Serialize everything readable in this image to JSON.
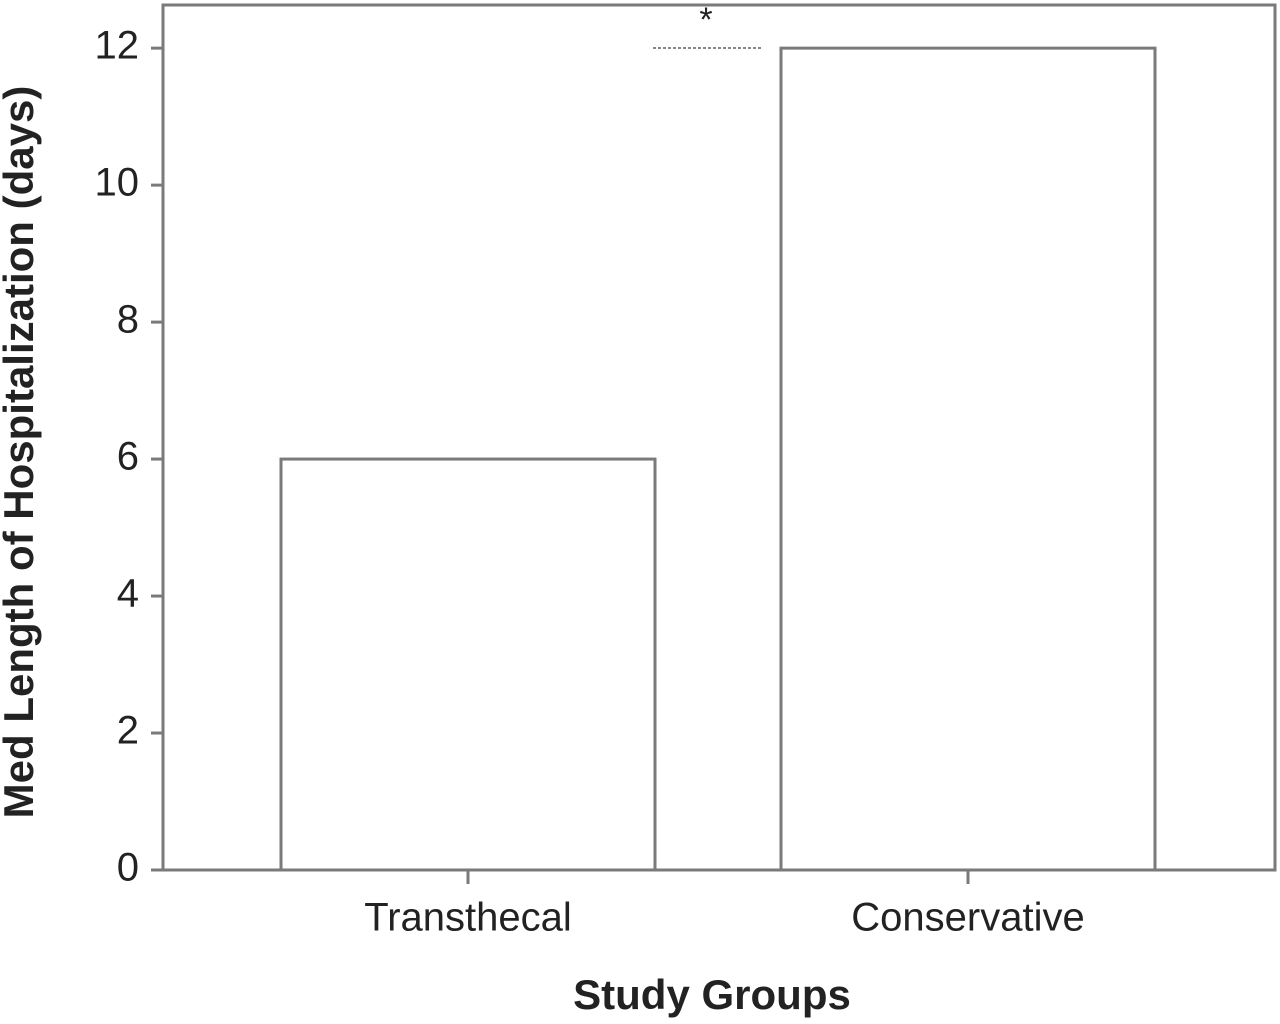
{
  "chart_data": {
    "type": "bar",
    "x_label": "Study Groups",
    "y_label": "Med Length of Hospitalization (days)",
    "categories": [
      "Transthecal",
      "Conservative"
    ],
    "values": [
      6,
      12
    ],
    "color": "#ffffff",
    "edge_color": "#7a7a7a",
    "ylim": [
      0,
      12.63
    ],
    "yticks": [
      0,
      2,
      4,
      6,
      8,
      10,
      12
    ],
    "annotation": "*"
  }
}
